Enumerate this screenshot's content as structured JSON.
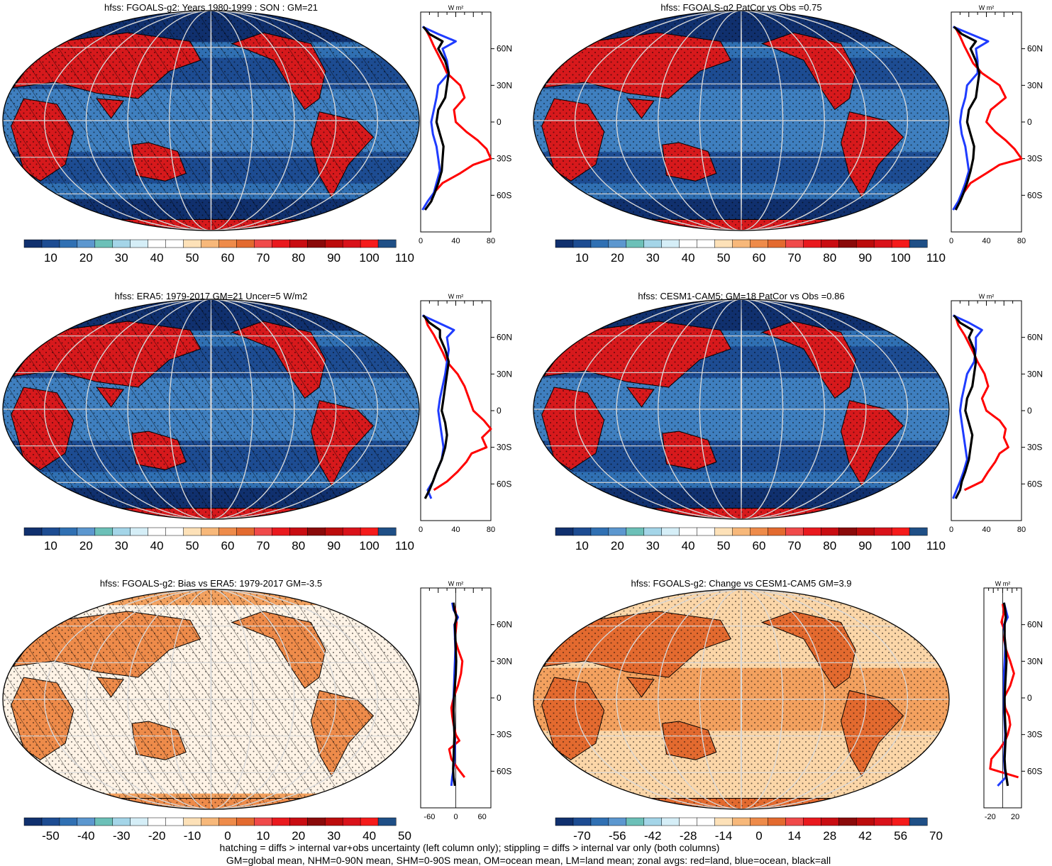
{
  "colors": {
    "ocean_low": "#10306e",
    "ocean_mid": "#3f7fbf",
    "ocean_light": "#a8d0e8",
    "land_hot": "#d7191c",
    "land_warm": "#e97b3a",
    "bias_light": "#fbd6a8",
    "bias_mid": "#f3a15f",
    "line_land": "#ff0000",
    "line_ocean": "#1f3cff",
    "line_all": "#000000"
  },
  "scales": {
    "abs": {
      "colors": [
        "#10306e",
        "#1d4c92",
        "#3070b3",
        "#5c97cf",
        "#6cc0b8",
        "#a4d5e8",
        "#d5eef7",
        "#ffffff",
        "#ffffff",
        "#fde1b8",
        "#f7b87a",
        "#ee8b4a",
        "#e36a2f",
        "#f04a4a",
        "#e9191e",
        "#c90d12",
        "#8a0a0a",
        "#bc0c0c",
        "#d9121a",
        "#f51b1b",
        "#1f4f86"
      ],
      "labels": [
        "10",
        "20",
        "30",
        "40",
        "50",
        "60",
        "70",
        "80",
        "90",
        "100",
        "110"
      ]
    },
    "bias": {
      "colors": [
        "#10306e",
        "#1d4c92",
        "#3070b3",
        "#5c97cf",
        "#6cc0b8",
        "#a4d5e8",
        "#d5eef7",
        "#ffffff",
        "#ffffff",
        "#fde1b8",
        "#f7b87a",
        "#ee8b4a",
        "#e36a2f",
        "#f04a4a",
        "#e9191e",
        "#c90d12",
        "#8a0a0a",
        "#bc0c0c",
        "#d9121a",
        "#f51b1b",
        "#1f4f86"
      ],
      "labels": [
        "-50",
        "-40",
        "-30",
        "-20",
        "-10",
        "0",
        "10",
        "20",
        "30",
        "40",
        "50"
      ]
    },
    "change": {
      "colors": [
        "#10306e",
        "#1d4c92",
        "#3070b3",
        "#5c97cf",
        "#6cc0b8",
        "#a4d5e8",
        "#d5eef7",
        "#ffffff",
        "#ffffff",
        "#fde1b8",
        "#f7b87a",
        "#ee8b4a",
        "#e36a2f",
        "#f04a4a",
        "#e9191e",
        "#c90d12",
        "#8a0a0a",
        "#bc0c0c",
        "#d9121a",
        "#f51b1b",
        "#1f4f86"
      ],
      "labels": [
        "-70",
        "-56",
        "-42",
        "-28",
        "-14",
        "0",
        "14",
        "28",
        "42",
        "56",
        "70"
      ]
    }
  },
  "chart_data": [
    {
      "type": "heatmap",
      "title": "hfss: FGOALS-g2: Years 1980-1999 : SON : GM=21",
      "theme": "abs",
      "hatching": true,
      "scale": "abs",
      "zonal": {
        "unit": "W m²",
        "xlim": [
          0,
          80
        ],
        "xticks": [
          "0",
          "40",
          "80"
        ],
        "ylabels": [
          "60N",
          "30N",
          "0",
          "30S",
          "60S"
        ],
        "series": [
          {
            "name": "land",
            "lat": [
              77,
              70,
              62,
              55,
              48,
              40,
              30,
              20,
              10,
              0,
              -8,
              -15,
              -22,
              -30,
              -35,
              -42,
              -50,
              -58,
              -65
            ],
            "values": [
              5,
              10,
              15,
              20,
              25,
              30,
              45,
              50,
              38,
              40,
              52,
              65,
              75,
              80,
              60,
              45,
              25,
              15,
              12
            ]
          },
          {
            "name": "ocean",
            "lat": [
              78,
              72,
              66,
              60,
              50,
              40,
              30,
              20,
              10,
              0,
              -10,
              -20,
              -30,
              -40,
              -50,
              -58,
              -65,
              -72
            ],
            "values": [
              2,
              20,
              40,
              25,
              30,
              32,
              20,
              18,
              15,
              12,
              14,
              18,
              20,
              22,
              18,
              15,
              8,
              2
            ]
          },
          {
            "name": "all",
            "lat": [
              78,
              72,
              66,
              60,
              50,
              40,
              30,
              20,
              10,
              0,
              -10,
              -20,
              -30,
              -40,
              -50,
              -58,
              -65,
              -72
            ],
            "values": [
              3,
              10,
              25,
              20,
              28,
              32,
              30,
              28,
              20,
              18,
              22,
              26,
              25,
              24,
              20,
              16,
              12,
              5
            ]
          }
        ]
      }
    },
    {
      "type": "heatmap",
      "title": "hfss: FGOALS-g2 PatCor vs Obs =0.75",
      "theme": "abs",
      "hatching": false,
      "scale": "abs",
      "zonal": {
        "unit": "W m²",
        "xlim": [
          0,
          80
        ],
        "xticks": [
          "0",
          "40",
          "80"
        ],
        "ylabels": [
          "60N",
          "30N",
          "0",
          "30S",
          "60S"
        ],
        "series": [
          {
            "name": "land",
            "lat": [
              77,
              70,
              62,
              55,
              48,
              40,
              30,
              20,
              10,
              0,
              -8,
              -15,
              -22,
              -30,
              -35,
              -42,
              -50,
              -58,
              -65
            ],
            "values": [
              5,
              10,
              15,
              20,
              25,
              35,
              55,
              62,
              45,
              40,
              50,
              62,
              72,
              80,
              55,
              40,
              22,
              14,
              10
            ]
          },
          {
            "name": "ocean",
            "lat": [
              78,
              72,
              66,
              60,
              50,
              40,
              30,
              20,
              10,
              0,
              -10,
              -20,
              -30,
              -40,
              -50,
              -58,
              -65,
              -72
            ],
            "values": [
              2,
              22,
              42,
              28,
              30,
              30,
              18,
              16,
              12,
              10,
              12,
              16,
              18,
              20,
              16,
              12,
              8,
              2
            ]
          },
          {
            "name": "all",
            "lat": [
              78,
              72,
              66,
              60,
              50,
              40,
              30,
              20,
              10,
              0,
              -10,
              -20,
              -30,
              -40,
              -50,
              -58,
              -65,
              -72
            ],
            "values": [
              3,
              12,
              28,
              22,
              28,
              32,
              30,
              28,
              20,
              18,
              22,
              26,
              25,
              22,
              18,
              14,
              10,
              5
            ]
          }
        ]
      }
    },
    {
      "type": "heatmap",
      "title": "hfss: ERA5: 1979-2017 GM=21 Uncer=5 W/m2",
      "theme": "abs",
      "hatching": true,
      "scale": "abs",
      "zonal": {
        "unit": "W m²",
        "xlim": [
          0,
          80
        ],
        "xticks": [
          "0",
          "40",
          "80"
        ],
        "ylabels": [
          "60N",
          "30N",
          "0",
          "30S",
          "60S"
        ],
        "series": [
          {
            "name": "land",
            "lat": [
              77,
              70,
              62,
              55,
              48,
              40,
              30,
              20,
              10,
              0,
              -8,
              -15,
              -22,
              -30,
              -35,
              -42,
              -50,
              -58,
              -65
            ],
            "values": [
              5,
              8,
              15,
              20,
              25,
              30,
              42,
              50,
              55,
              60,
              72,
              80,
              70,
              75,
              58,
              52,
              42,
              30,
              15
            ]
          },
          {
            "name": "ocean",
            "lat": [
              78,
              72,
              66,
              60,
              50,
              40,
              30,
              20,
              10,
              0,
              -10,
              -20,
              -30,
              -40,
              -50,
              -58,
              -65,
              -72
            ],
            "values": [
              2,
              20,
              38,
              30,
              32,
              30,
              28,
              25,
              22,
              20,
              22,
              24,
              26,
              24,
              18,
              14,
              8,
              12
            ]
          },
          {
            "name": "all",
            "lat": [
              78,
              72,
              66,
              60,
              50,
              40,
              30,
              20,
              10,
              0,
              -10,
              -20,
              -30,
              -40,
              -50,
              -58,
              -65,
              -72
            ],
            "values": [
              3,
              10,
              22,
              22,
              28,
              32,
              30,
              28,
              26,
              24,
              28,
              30,
              28,
              24,
              18,
              14,
              10,
              5
            ]
          }
        ]
      }
    },
    {
      "type": "heatmap",
      "title": "hfss: CESM1-CAM5: GM=18 PatCor vs Obs =0.86",
      "theme": "abs",
      "hatching": false,
      "scale": "abs",
      "zonal": {
        "unit": "W m²",
        "xlim": [
          0,
          80
        ],
        "xticks": [
          "0",
          "40",
          "80"
        ],
        "ylabels": [
          "60N",
          "30N",
          "0",
          "30S",
          "60S"
        ],
        "series": [
          {
            "name": "land",
            "lat": [
              77,
              70,
              62,
              55,
              48,
              40,
              30,
              20,
              10,
              0,
              -8,
              -15,
              -22,
              -30,
              -35,
              -42,
              -50,
              -58,
              -65
            ],
            "values": [
              5,
              8,
              15,
              20,
              25,
              30,
              38,
              42,
              35,
              40,
              55,
              62,
              60,
              65,
              55,
              50,
              42,
              35,
              15
            ]
          },
          {
            "name": "ocean",
            "lat": [
              78,
              72,
              66,
              60,
              50,
              40,
              30,
              20,
              10,
              0,
              -10,
              -20,
              -30,
              -40,
              -50,
              -58,
              -65,
              -72
            ],
            "values": [
              2,
              20,
              35,
              28,
              28,
              26,
              18,
              15,
              12,
              10,
              12,
              14,
              16,
              18,
              14,
              10,
              6,
              2
            ]
          },
          {
            "name": "all",
            "lat": [
              78,
              72,
              66,
              60,
              50,
              40,
              30,
              20,
              10,
              0,
              -10,
              -20,
              -30,
              -40,
              -50,
              -58,
              -65,
              -72
            ],
            "values": [
              3,
              10,
              24,
              20,
              26,
              28,
              26,
              24,
              18,
              16,
              20,
              24,
              22,
              20,
              16,
              12,
              10,
              5
            ]
          }
        ]
      }
    },
    {
      "type": "heatmap",
      "title": "hfss: FGOALS-g2: Bias vs ERA5: 1979-2017  GM=-3.5",
      "theme": "bias",
      "hatching": true,
      "scale": "bias",
      "zonal": {
        "unit": "W m²",
        "xlim": [
          -80,
          80
        ],
        "xticks": [
          "-60",
          "0",
          "60"
        ],
        "ylabels": [
          "60N",
          "30N",
          "0",
          "30S",
          "60S"
        ],
        "series": [
          {
            "name": "land",
            "lat": [
              77,
              70,
              62,
              55,
              48,
              40,
              30,
              20,
              10,
              0,
              -8,
              -15,
              -22,
              -30,
              -35,
              -42,
              -50,
              -58,
              -65
            ],
            "values": [
              -5,
              0,
              2,
              0,
              -2,
              5,
              15,
              12,
              5,
              -5,
              -10,
              -8,
              -5,
              0,
              8,
              -15,
              -10,
              5,
              20
            ]
          },
          {
            "name": "ocean",
            "lat": [
              78,
              72,
              66,
              60,
              50,
              40,
              30,
              20,
              10,
              0,
              -10,
              -20,
              -30,
              -40,
              -50,
              -58,
              -65,
              -72
            ],
            "values": [
              -8,
              -5,
              5,
              -3,
              -2,
              -1,
              -2,
              -3,
              -4,
              -5,
              -5,
              -4,
              -3,
              -2,
              -3,
              -5,
              -8,
              -10
            ]
          },
          {
            "name": "all",
            "lat": [
              78,
              72,
              66,
              60,
              50,
              40,
              30,
              20,
              10,
              0,
              -10,
              -20,
              -30,
              -40,
              -50,
              -58,
              -65,
              -72
            ],
            "values": [
              -5,
              -3,
              2,
              -2,
              -1,
              0,
              1,
              0,
              -2,
              -4,
              -5,
              -4,
              -3,
              -4,
              -5,
              -6,
              -5,
              -2
            ]
          }
        ]
      }
    },
    {
      "type": "heatmap",
      "title": "hfss: FGOALS-g2: Change vs CESM1-CAM5 GM=3.9",
      "theme": "change",
      "hatching": false,
      "scale": "change",
      "zonal": {
        "unit": "W m²",
        "xlim": [
          -30,
          30
        ],
        "xticks": [
          "-20",
          "20"
        ],
        "ylabels": [
          "60N",
          "30N",
          "0",
          "30S",
          "60S"
        ],
        "series": [
          {
            "name": "land",
            "lat": [
              77,
              70,
              62,
              55,
              48,
              40,
              30,
              20,
              10,
              0,
              -8,
              -15,
              -22,
              -30,
              -35,
              -42,
              -50,
              -58,
              -65
            ],
            "values": [
              0,
              2,
              -2,
              3,
              2,
              5,
              12,
              18,
              12,
              2,
              4,
              10,
              12,
              8,
              4,
              -5,
              -18,
              -20,
              25
            ]
          },
          {
            "name": "ocean",
            "lat": [
              78,
              72,
              66,
              60,
              50,
              40,
              30,
              20,
              10,
              0,
              -10,
              -20,
              -30,
              -40,
              -50,
              -58,
              -65,
              -72
            ],
            "values": [
              2,
              5,
              8,
              2,
              3,
              4,
              3,
              2,
              2,
              2,
              2,
              3,
              4,
              3,
              2,
              3,
              5,
              -8
            ]
          },
          {
            "name": "all",
            "lat": [
              78,
              72,
              66,
              60,
              50,
              40,
              30,
              20,
              10,
              0,
              -10,
              -20,
              -30,
              -40,
              -50,
              -58,
              -65,
              -72
            ],
            "values": [
              2,
              4,
              5,
              3,
              3,
              5,
              6,
              5,
              4,
              3,
              3,
              4,
              5,
              4,
              3,
              4,
              6,
              8
            ]
          }
        ]
      }
    }
  ],
  "footer": {
    "line1": "hatching = diffs > internal var+obs uncertainty (left column only); stippling = diffs > internal var only (both columns)",
    "line2": "GM=global mean, NHM=0-90N mean, SHM=0-90S mean, OM=ocean mean, LM=land mean; zonal avgs: red=land, blue=ocean, black=all"
  }
}
